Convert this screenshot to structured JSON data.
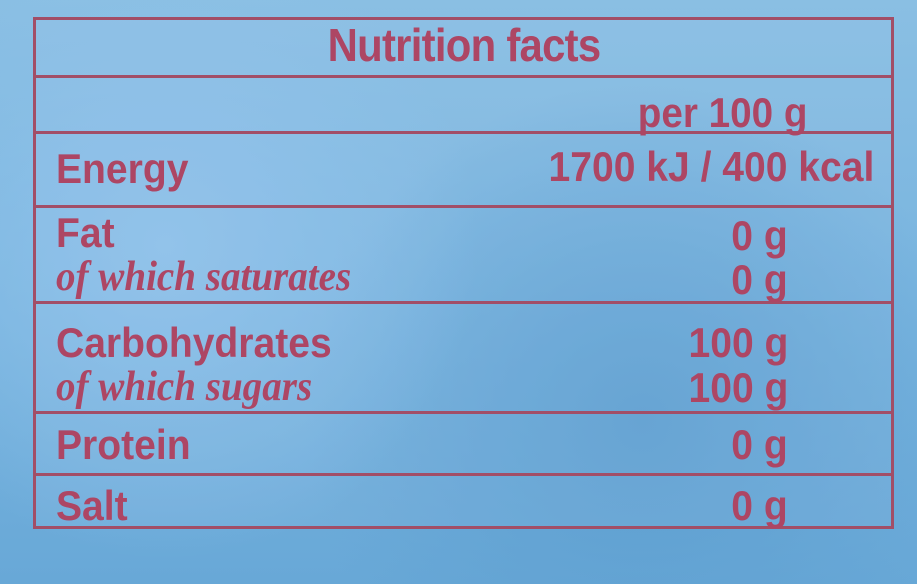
{
  "nutrition": {
    "title": "Nutrition facts",
    "per_label": "per 100 g",
    "rows": {
      "energy": {
        "label": "Energy",
        "value": "1700 kJ / 400 kcal"
      },
      "fat": {
        "label": "Fat",
        "value": "0 g",
        "sub_label": "of which saturates",
        "sub_value": "0 g"
      },
      "carbohydrates": {
        "label": "Carbohydrates",
        "value": "100 g",
        "sub_label": "of which sugars",
        "sub_value": "100 g"
      },
      "protein": {
        "label": "Protein",
        "value": "0 g"
      },
      "salt": {
        "label": "Salt",
        "value": "0 g"
      }
    }
  },
  "colors": {
    "background": "#78b4df",
    "border": "#a24e67",
    "text": "#ad4664"
  }
}
